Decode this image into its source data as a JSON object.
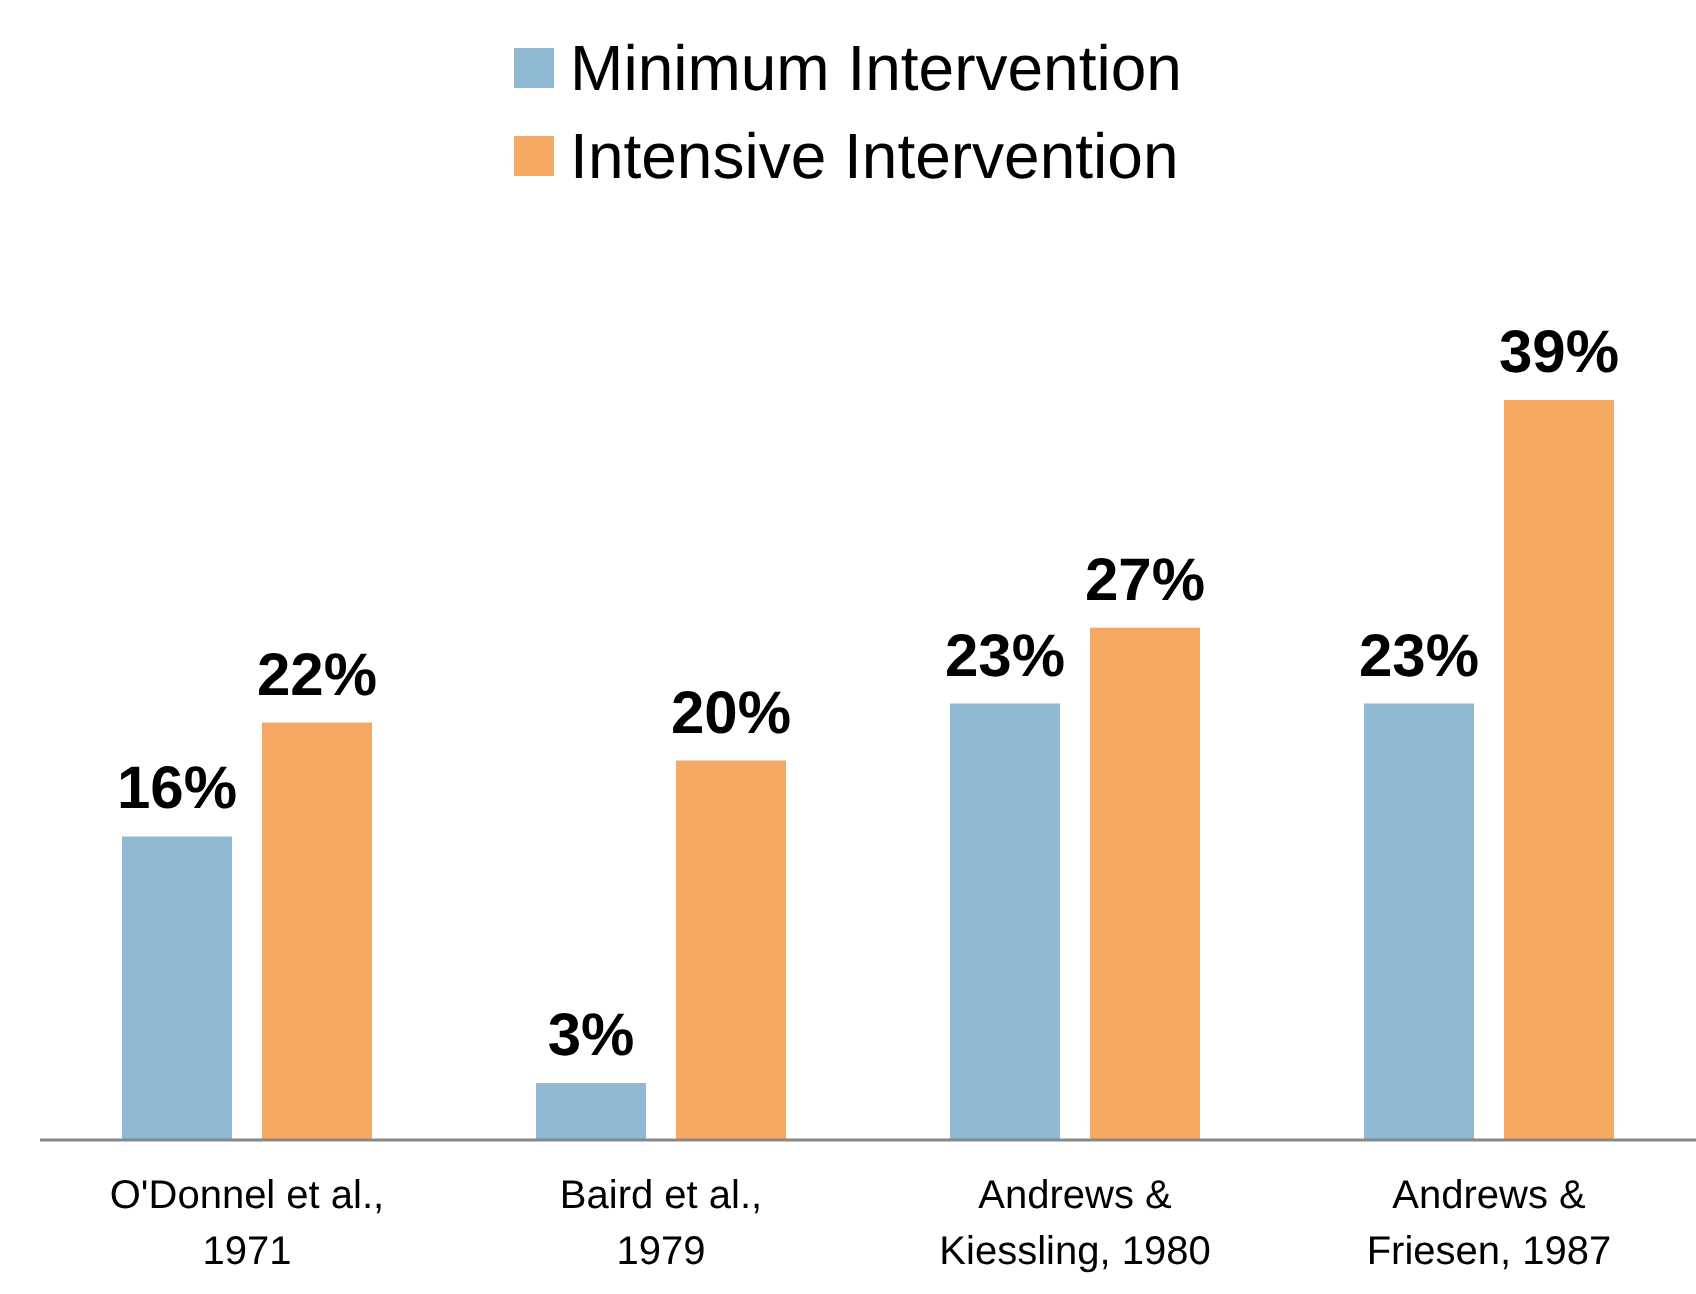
{
  "chart_data": {
    "type": "bar",
    "categories": [
      "O'Donnel et al., 1971",
      "Baird et al., 1979",
      "Andrews & Kiessling, 1980",
      "Andrews & Friesen, 1987"
    ],
    "series": [
      {
        "name": "Minimum Intervention",
        "color": "#8fb9d2",
        "values": [
          16,
          3,
          23,
          23
        ],
        "value_labels": [
          "16%",
          "3%",
          "23%",
          "23%"
        ]
      },
      {
        "name": "Intensive Intervention",
        "color": "#f4a862",
        "values": [
          22,
          20,
          27,
          39
        ],
        "value_labels": [
          "22%",
          "20%",
          "27%",
          "39%"
        ]
      }
    ],
    "legend": "top",
    "grid": false
  }
}
